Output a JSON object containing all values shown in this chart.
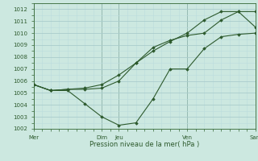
{
  "bg_color": "#cce8e0",
  "grid_major_color": "#aacccc",
  "grid_minor_color": "#bbdddd",
  "line_color": "#2d5a2d",
  "marker_color": "#2d5a2d",
  "ylabel_min": 1002,
  "ylabel_max": 1012.5,
  "yticks": [
    1002,
    1003,
    1004,
    1005,
    1006,
    1007,
    1008,
    1009,
    1010,
    1011,
    1012
  ],
  "xlabel": "Pression niveau de la mer( hPa )",
  "xtick_labels": [
    "Mer",
    "Dim",
    "Jeu",
    "Ven",
    "Sam"
  ],
  "xtick_positions": [
    0,
    4,
    5,
    9,
    13
  ],
  "series1_x": [
    0,
    1,
    2,
    3,
    4,
    5,
    6,
    7,
    8,
    9,
    10,
    11,
    12,
    13
  ],
  "series1_y": [
    1005.7,
    1005.2,
    1005.2,
    1004.1,
    1003.0,
    1002.3,
    1002.5,
    1004.5,
    1007.0,
    1007.0,
    1008.7,
    1009.7,
    1009.9,
    1010.0
  ],
  "series2_x": [
    0,
    1,
    2,
    3,
    4,
    5,
    6,
    7,
    8,
    9,
    10,
    11,
    12,
    13
  ],
  "series2_y": [
    1005.7,
    1005.2,
    1005.3,
    1005.3,
    1005.4,
    1006.0,
    1007.5,
    1008.8,
    1009.4,
    1009.8,
    1010.0,
    1011.1,
    1011.8,
    1011.8
  ],
  "series3_x": [
    0,
    1,
    2,
    3,
    4,
    5,
    6,
    7,
    8,
    9,
    10,
    11,
    12,
    13
  ],
  "series3_y": [
    1005.7,
    1005.2,
    1005.3,
    1005.4,
    1005.7,
    1006.5,
    1007.5,
    1008.5,
    1009.3,
    1010.0,
    1011.1,
    1011.8,
    1011.8,
    1010.5
  ],
  "vline_positions": [
    0,
    4,
    5,
    9,
    13
  ],
  "vline_color": "#336633",
  "lw": 0.8,
  "ms": 1.8,
  "tick_fontsize": 5.0,
  "xlabel_fontsize": 6.0
}
